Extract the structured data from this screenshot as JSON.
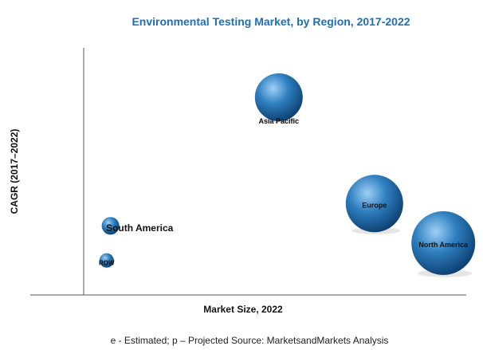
{
  "chart_data": {
    "type": "scatter",
    "title": "Environmental Testing Market, by Region, 2017-2022",
    "xlabel": "Market Size, 2022",
    "ylabel": "CAGR (2017–2022)",
    "footnote": "e - Estimated; p – Projected Source: MarketsandMarkets Analysis",
    "grid": false,
    "xlim": [
      0,
      100
    ],
    "ylim": [
      0,
      100
    ],
    "series": [
      {
        "points": [
          {
            "label": "Asia Pacific",
            "x": 51,
            "y": 80,
            "size": 30
          },
          {
            "label": "Europe",
            "x": 76,
            "y": 37,
            "size": 36
          },
          {
            "label": "North America",
            "x": 94,
            "y": 21,
            "size": 40
          },
          {
            "label": "South America",
            "x": 7,
            "y": 28,
            "size": 11
          },
          {
            "label": "ROW",
            "x": 6,
            "y": 14,
            "size": 9
          }
        ]
      }
    ],
    "colors": {
      "title": "#1f6fb5",
      "bubble_highlight": "#9fd0f5",
      "bubble_mid": "#2f7fc0",
      "bubble_dark": "#0b3d6e",
      "axis": "#555555"
    }
  }
}
